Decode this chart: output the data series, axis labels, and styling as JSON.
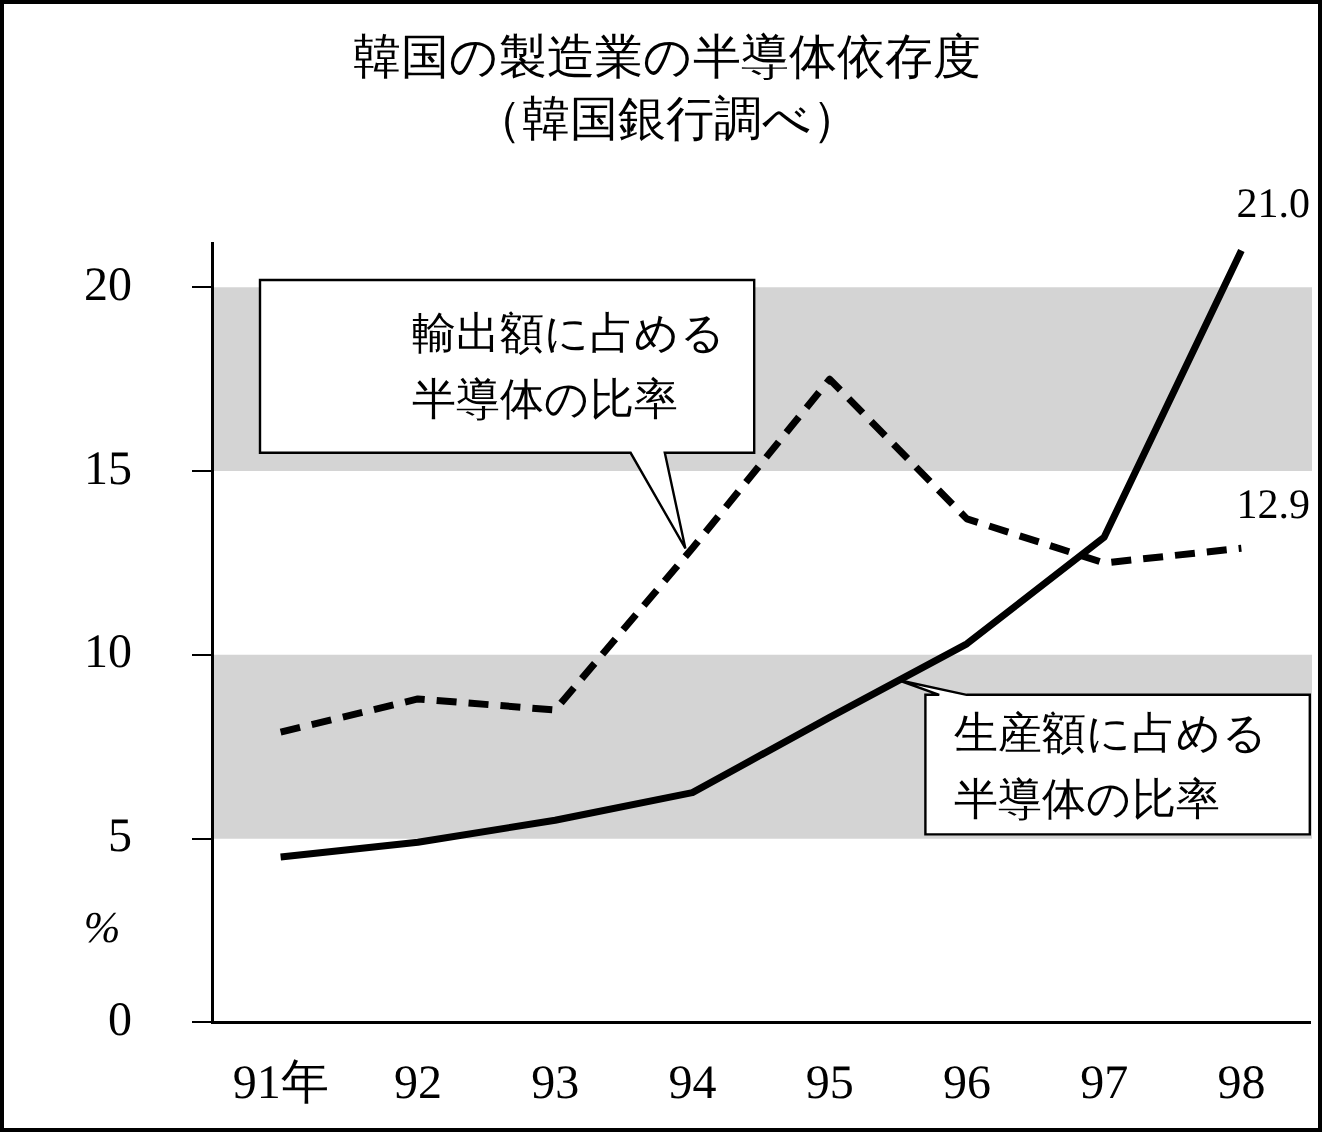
{
  "chart_data": {
    "type": "line",
    "title": "韓国の製造業の半導体依存度",
    "subtitle": "（韓国銀行調べ）",
    "ylabel": "%",
    "categories": [
      "91年",
      "92",
      "93",
      "94",
      "95",
      "96",
      "97",
      "98"
    ],
    "series": [
      {
        "name": "輸出額に占める半導体の比率",
        "color": "#000000",
        "line_style": "dashed",
        "values": [
          7.9,
          8.8,
          8.5,
          12.9,
          17.5,
          13.7,
          12.5,
          12.9
        ],
        "value_labels": [
          null,
          null,
          null,
          null,
          null,
          null,
          null,
          "12.9"
        ]
      },
      {
        "name": "生産額に占める半導体の比率",
        "color": "#000000",
        "line_style": "solid",
        "values": [
          4.5,
          4.9,
          5.5,
          6.25,
          8.3,
          10.3,
          13.2,
          21.0
        ],
        "value_labels": [
          null,
          null,
          null,
          null,
          null,
          null,
          null,
          "21.0"
        ]
      }
    ],
    "ylim": [
      0,
      21.2
    ],
    "yticks": [
      0,
      5,
      10,
      15,
      20
    ],
    "bands": [
      {
        "axis": "y",
        "from": 5,
        "to": 10,
        "color": "#d4d4d4"
      },
      {
        "axis": "y",
        "from": 15,
        "to": 20,
        "color": "#d4d4d4"
      }
    ],
    "grid": false,
    "legend": false,
    "marker": "none"
  }
}
